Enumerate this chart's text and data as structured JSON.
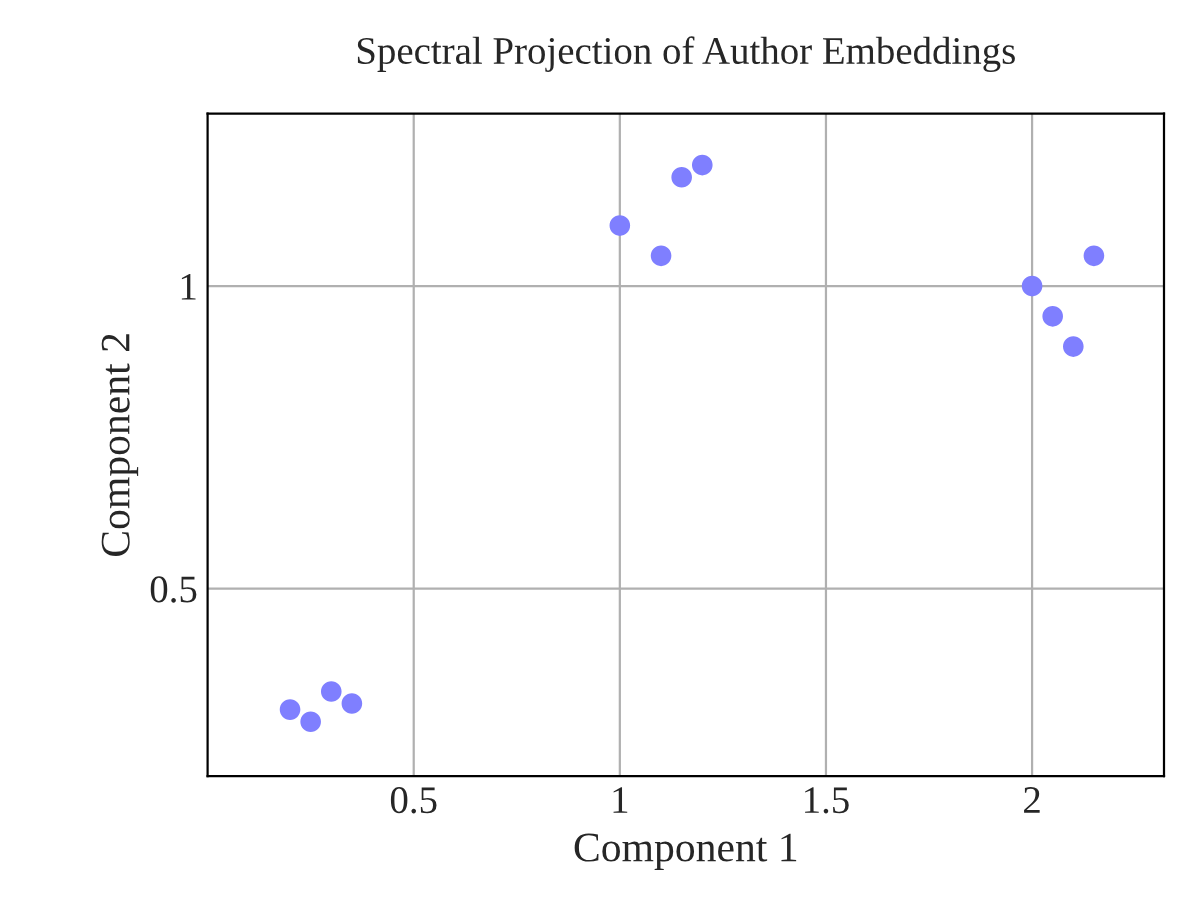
{
  "chart_data": {
    "type": "scatter",
    "title": "Spectral Projection of Author Embeddings",
    "xlabel": "Component 1",
    "ylabel": "Component 2",
    "x": [
      0.2,
      0.25,
      0.3,
      0.35,
      1.0,
      1.1,
      1.15,
      1.2,
      2.0,
      2.05,
      2.1,
      2.15
    ],
    "series": [
      {
        "color": "#7f7fff",
        "values": [
          0.3,
          0.28,
          0.33,
          0.31,
          1.1,
          1.05,
          1.18,
          1.2,
          1.0,
          0.95,
          0.9,
          1.05
        ]
      }
    ],
    "xlim": [
      0.0,
      2.32
    ],
    "ylim": [
      0.19,
      1.285
    ],
    "xticks": [
      0.5,
      1,
      1.5,
      2
    ],
    "yticks": [
      0.5,
      1
    ],
    "grid": true,
    "marker": "circle"
  }
}
